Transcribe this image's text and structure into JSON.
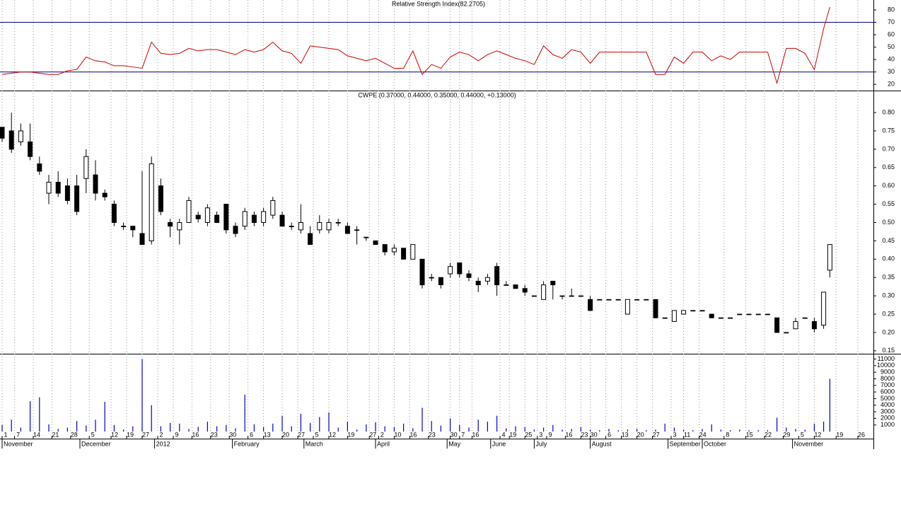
{
  "chart_data": {
    "type": "candlestick",
    "title": "CWPE (0.37000, 0.44000, 0.35000, 0.44000, +0.13000)",
    "x": [
      0,
      3,
      6,
      9,
      12,
      15,
      18,
      21,
      24,
      27,
      30,
      33,
      36,
      39,
      42,
      45,
      48,
      51,
      54,
      57,
      60,
      63,
      66,
      69,
      72,
      75,
      78,
      81,
      84,
      87,
      90,
      93,
      96,
      99,
      102,
      105,
      108,
      111,
      114,
      117,
      120,
      123,
      126,
      129,
      132,
      135,
      138,
      141,
      144,
      147,
      150,
      153,
      156,
      159,
      162,
      165,
      168,
      171,
      174,
      177,
      180,
      183,
      186,
      189,
      192,
      195,
      198,
      201,
      204,
      207,
      210,
      213,
      216,
      219,
      222,
      225,
      228,
      231,
      234,
      237,
      240,
      243,
      246,
      249,
      252,
      255,
      258,
      261,
      264,
      266
    ],
    "xlim": [
      0,
      280
    ],
    "xticks": [
      {
        "value": 0,
        "label": "1"
      },
      {
        "value": 4,
        "label": "7"
      },
      {
        "value": 10,
        "label": "14"
      },
      {
        "value": 16,
        "label": "21"
      },
      {
        "value": 22,
        "label": "28"
      },
      {
        "value": 28,
        "label": "5"
      },
      {
        "value": 35,
        "label": "12"
      },
      {
        "value": 40,
        "label": "19"
      },
      {
        "value": 45,
        "label": "27"
      },
      {
        "value": 50,
        "label": "2"
      },
      {
        "value": 55,
        "label": "9"
      },
      {
        "value": 61,
        "label": "16"
      },
      {
        "value": 67,
        "label": "23"
      },
      {
        "value": 73,
        "label": "30"
      },
      {
        "value": 79,
        "label": "6"
      },
      {
        "value": 84,
        "label": "13"
      },
      {
        "value": 90,
        "label": "20"
      },
      {
        "value": 95,
        "label": "27"
      },
      {
        "value": 100,
        "label": "5"
      },
      {
        "value": 105,
        "label": "12"
      },
      {
        "value": 111,
        "label": "19"
      },
      {
        "value": 118,
        "label": "27"
      },
      {
        "value": 121,
        "label": "2"
      },
      {
        "value": 126,
        "label": "10"
      },
      {
        "value": 131,
        "label": "16"
      },
      {
        "value": 137,
        "label": "23"
      },
      {
        "value": 144,
        "label": "30"
      },
      {
        "value": 147,
        "label": "7"
      },
      {
        "value": 151,
        "label": "16"
      },
      {
        "value": 160,
        "label": "4"
      },
      {
        "value": 163,
        "label": "19"
      },
      {
        "value": 168,
        "label": "25"
      },
      {
        "value": 172,
        "label": "3"
      },
      {
        "value": 175,
        "label": "9"
      },
      {
        "value": 181,
        "label": "16"
      },
      {
        "value": 186,
        "label": "23"
      },
      {
        "value": 189,
        "label": "30"
      },
      {
        "value": 194,
        "label": "6"
      },
      {
        "value": 199,
        "label": "13"
      },
      {
        "value": 204,
        "label": "20"
      },
      {
        "value": 209,
        "label": "27"
      },
      {
        "value": 215,
        "label": "3"
      },
      {
        "value": 219,
        "label": "11"
      },
      {
        "value": 224,
        "label": "24"
      },
      {
        "value": 232,
        "label": "8"
      },
      {
        "value": 239,
        "label": "15"
      },
      {
        "value": 245,
        "label": "22"
      },
      {
        "value": 251,
        "label": "29"
      },
      {
        "value": 256,
        "label": "5"
      },
      {
        "value": 261,
        "label": "12"
      },
      {
        "value": 268,
        "label": "19"
      },
      {
        "value": 275,
        "label": "26"
      }
    ],
    "months": [
      {
        "value": 0,
        "label": "November"
      },
      {
        "value": 25,
        "label": "December"
      },
      {
        "value": 49,
        "label": "2012"
      },
      {
        "value": 74,
        "label": "February"
      },
      {
        "value": 97,
        "label": "March"
      },
      {
        "value": 120,
        "label": "April"
      },
      {
        "value": 143,
        "label": "May"
      },
      {
        "value": 157,
        "label": "June"
      },
      {
        "value": 171,
        "label": "July"
      },
      {
        "value": 189,
        "label": "August"
      },
      {
        "value": 214,
        "label": "September"
      },
      {
        "value": 225,
        "label": "October"
      },
      {
        "value": 254,
        "label": "November"
      }
    ],
    "open": [
      0.76,
      0.75,
      0.72,
      0.72,
      0.66,
      0.58,
      0.61,
      0.6,
      0.6,
      0.62,
      0.63,
      0.58,
      0.55,
      0.49,
      0.49,
      0.47,
      0.45,
      0.6,
      0.5,
      0.48,
      0.5,
      0.52,
      0.5,
      0.52,
      0.55,
      0.49,
      0.49,
      0.52,
      0.5,
      0.52,
      0.52,
      0.49,
      0.48,
      0.47,
      0.48,
      0.48,
      0.5,
      0.49,
      0.48,
      0.46,
      0.45,
      0.44,
      0.42,
      0.43,
      0.4,
      0.4,
      0.35,
      0.35,
      0.36,
      0.39,
      0.36,
      0.34,
      0.34,
      0.38,
      0.33,
      0.33,
      0.32,
      0.3,
      0.29,
      0.34,
      0.3,
      0.3,
      0.3,
      0.29,
      0.29,
      0.29,
      0.29,
      0.25,
      0.29,
      0.29,
      0.29,
      0.24,
      0.23,
      0.25,
      0.26,
      0.26,
      0.25,
      0.24,
      0.24,
      0.25,
      0.25,
      0.25,
      0.25,
      0.24,
      0.2,
      0.21,
      0.24,
      0.23,
      0.22,
      0.37
    ],
    "high": [
      0.76,
      0.8,
      0.77,
      0.77,
      0.68,
      0.63,
      0.64,
      0.62,
      0.63,
      0.7,
      0.67,
      0.59,
      0.56,
      0.5,
      0.49,
      0.64,
      0.68,
      0.62,
      0.51,
      0.51,
      0.57,
      0.53,
      0.55,
      0.53,
      0.55,
      0.5,
      0.54,
      0.53,
      0.54,
      0.57,
      0.53,
      0.5,
      0.55,
      0.49,
      0.52,
      0.51,
      0.51,
      0.5,
      0.49,
      0.46,
      0.45,
      0.44,
      0.44,
      0.43,
      0.44,
      0.4,
      0.36,
      0.35,
      0.39,
      0.39,
      0.37,
      0.35,
      0.36,
      0.39,
      0.34,
      0.33,
      0.33,
      0.3,
      0.34,
      0.34,
      0.3,
      0.32,
      0.3,
      0.3,
      0.29,
      0.29,
      0.29,
      0.29,
      0.29,
      0.29,
      0.29,
      0.24,
      0.26,
      0.26,
      0.26,
      0.26,
      0.25,
      0.24,
      0.24,
      0.25,
      0.25,
      0.25,
      0.25,
      0.24,
      0.2,
      0.24,
      0.24,
      0.24,
      0.31,
      0.44
    ],
    "low": [
      0.72,
      0.69,
      0.71,
      0.67,
      0.63,
      0.55,
      0.57,
      0.55,
      0.52,
      0.58,
      0.56,
      0.56,
      0.49,
      0.48,
      0.46,
      0.44,
      0.44,
      0.52,
      0.46,
      0.44,
      0.5,
      0.5,
      0.49,
      0.5,
      0.47,
      0.46,
      0.48,
      0.49,
      0.49,
      0.51,
      0.49,
      0.48,
      0.47,
      0.44,
      0.47,
      0.47,
      0.49,
      0.47,
      0.44,
      0.45,
      0.44,
      0.41,
      0.41,
      0.4,
      0.4,
      0.32,
      0.34,
      0.32,
      0.35,
      0.35,
      0.34,
      0.31,
      0.33,
      0.3,
      0.33,
      0.32,
      0.3,
      0.3,
      0.29,
      0.29,
      0.29,
      0.3,
      0.3,
      0.26,
      0.29,
      0.29,
      0.29,
      0.25,
      0.29,
      0.29,
      0.24,
      0.24,
      0.23,
      0.25,
      0.26,
      0.26,
      0.24,
      0.24,
      0.24,
      0.25,
      0.25,
      0.25,
      0.25,
      0.2,
      0.2,
      0.21,
      0.24,
      0.2,
      0.21,
      0.35
    ],
    "close": [
      0.73,
      0.7,
      0.75,
      0.68,
      0.64,
      0.61,
      0.58,
      0.56,
      0.53,
      0.68,
      0.58,
      0.57,
      0.5,
      0.49,
      0.48,
      0.44,
      0.66,
      0.53,
      0.49,
      0.5,
      0.56,
      0.51,
      0.54,
      0.5,
      0.48,
      0.47,
      0.53,
      0.5,
      0.53,
      0.56,
      0.49,
      0.49,
      0.5,
      0.44,
      0.5,
      0.5,
      0.5,
      0.47,
      0.48,
      0.46,
      0.44,
      0.42,
      0.43,
      0.4,
      0.44,
      0.33,
      0.35,
      0.33,
      0.38,
      0.36,
      0.35,
      0.33,
      0.35,
      0.33,
      0.33,
      0.32,
      0.31,
      0.3,
      0.33,
      0.33,
      0.3,
      0.3,
      0.3,
      0.26,
      0.29,
      0.29,
      0.29,
      0.29,
      0.29,
      0.29,
      0.24,
      0.24,
      0.26,
      0.26,
      0.26,
      0.26,
      0.24,
      0.24,
      0.24,
      0.25,
      0.25,
      0.25,
      0.25,
      0.2,
      0.2,
      0.23,
      0.24,
      0.21,
      0.31,
      0.44
    ],
    "ylim": [
      0.142,
      0.86
    ],
    "yticks": [
      0.15,
      {
        "value": 0.2,
        "label": "0.20"
      },
      0.25,
      {
        "value": 0.3,
        "label": "0.30"
      },
      0.35,
      {
        "value": 0.4,
        "label": "0.40"
      },
      0.45,
      {
        "value": 0.5,
        "label": "0.50"
      },
      0.55,
      {
        "value": 0.6,
        "label": "0.60"
      },
      0.65,
      {
        "value": 0.7,
        "label": "0.70"
      },
      0.75,
      {
        "value": 0.8,
        "label": "0.80"
      }
    ],
    "up_color": "#ffffff",
    "down_color": "#000000",
    "grid": true,
    "rsi": {
      "type": "line",
      "title": "Relative Strength Index(82.2705)",
      "values": [
        28,
        29,
        30,
        30,
        29,
        28,
        28,
        31,
        32,
        42,
        39,
        38,
        35,
        35,
        34,
        33,
        54,
        45,
        44,
        45,
        49,
        47,
        48,
        48,
        46,
        44,
        48,
        46,
        48,
        54,
        47,
        45,
        37,
        51,
        50,
        49,
        48,
        43,
        41,
        39,
        41,
        37,
        33,
        33,
        47,
        28,
        36,
        33,
        42,
        46,
        44,
        39,
        44,
        47,
        44,
        41,
        39,
        36,
        51,
        44,
        41,
        48,
        46,
        37,
        46,
        46,
        46,
        46,
        46,
        46,
        28,
        28,
        42,
        37,
        46,
        46,
        39,
        43,
        40,
        46,
        46,
        46,
        46,
        21,
        49,
        49,
        45,
        32,
        65,
        82.27
      ],
      "color": "#cc0000",
      "ylim": [
        15,
        88
      ],
      "yticks": [
        20,
        30,
        40,
        50,
        60,
        70,
        80
      ],
      "hlines": [
        70,
        30
      ],
      "hline_color": "#000080"
    },
    "volume": {
      "type": "bar",
      "values": [
        1000,
        1800,
        600,
        4600,
        5200,
        1100,
        400,
        600,
        1600,
        900,
        1800,
        4500,
        1000,
        300,
        800,
        11000,
        4000,
        800,
        1300,
        1200,
        400,
        700,
        1500,
        800,
        1000,
        500,
        5600,
        1100,
        700,
        1200,
        2400,
        800,
        2700,
        1300,
        2200,
        2900,
        600,
        1500,
        300,
        1100,
        1400,
        800,
        700,
        1200,
        500,
        3600,
        1600,
        900,
        2000,
        1000,
        600,
        1800,
        1500,
        2400,
        500,
        800,
        700,
        300,
        600,
        1000,
        300,
        400,
        700,
        300,
        200,
        400,
        200,
        300,
        400,
        200,
        300,
        1200,
        600,
        300,
        200,
        400,
        1100,
        300,
        200,
        300,
        200,
        200,
        200,
        2100,
        600,
        400,
        300,
        1200,
        1500,
        8000
      ],
      "color": "#0000cc",
      "ylim": [
        0,
        11800
      ],
      "yticks": [
        1000,
        2000,
        3000,
        4000,
        5000,
        6000,
        7000,
        8000,
        9000,
        10000,
        11000
      ]
    }
  }
}
